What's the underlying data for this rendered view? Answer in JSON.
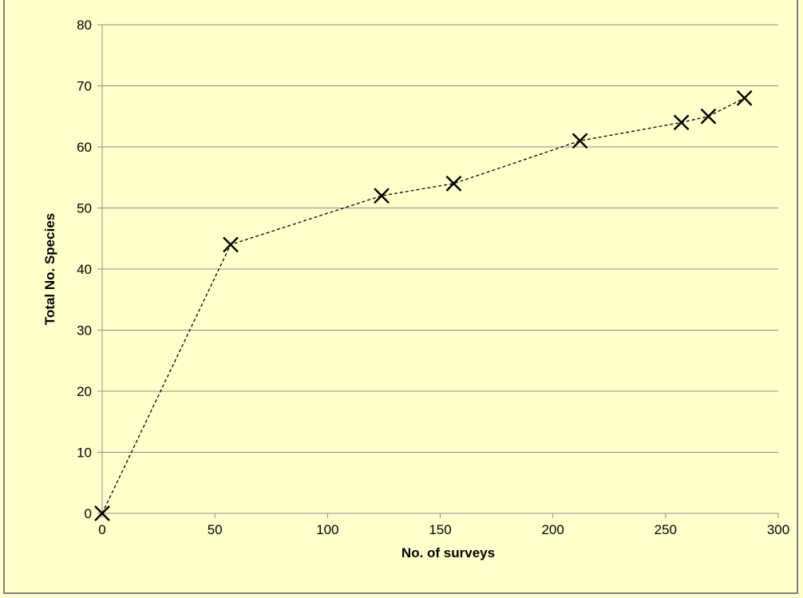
{
  "chart_data": {
    "type": "scatter",
    "title": "",
    "xlabel": "No. of surveys",
    "ylabel": "Total No. Species",
    "xlim": [
      0,
      300
    ],
    "ylim": [
      0,
      80
    ],
    "x_ticks": [
      0,
      50,
      100,
      150,
      200,
      250,
      300
    ],
    "y_ticks": [
      0,
      10,
      20,
      30,
      40,
      50,
      60,
      70,
      80
    ],
    "grid": true,
    "marker": "x",
    "line_style": "dashed",
    "series": [
      {
        "x": [
          0,
          57,
          124,
          156,
          212,
          257,
          269,
          285
        ],
        "y": [
          0,
          44,
          52,
          54,
          61,
          64,
          65,
          68
        ]
      }
    ]
  },
  "colors": {
    "background": "#ffffcc",
    "gridline": "#8c8c8c",
    "series": "#000000"
  }
}
